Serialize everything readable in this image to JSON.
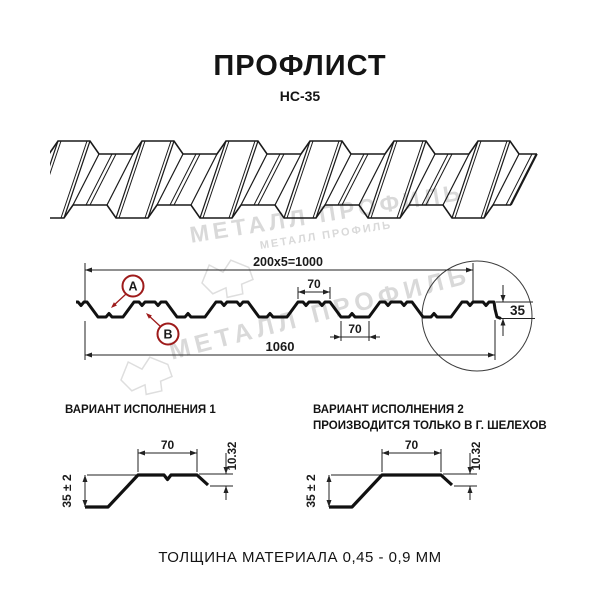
{
  "header": {
    "title": "ПРОФЛИСТ",
    "subtitle": "НС-35"
  },
  "section": {
    "dim_pitch_total": "200x5=1000",
    "dim_rib_top": "70",
    "dim_rib_bottom": "70",
    "dim_overall": "1060",
    "dim_height": "35",
    "label_a": "А",
    "label_b": "В"
  },
  "variants": {
    "v1_title": "ВАРИАНТ ИСПОЛНЕНИЯ 1",
    "v2_title_line1": "ВАРИАНТ ИСПОЛНЕНИЯ 2",
    "v2_title_line2": "ПРОИЗВОДИТСЯ ТОЛЬКО В Г. ШЕЛЕХОВ",
    "dim_rib": "70",
    "dim_height_tol": "35 ± 2",
    "dim_lip": "10.32"
  },
  "footer": {
    "material_thickness": "ТОЛЩИНА МАТЕРИАЛА 0,45 - 0,9 ММ"
  },
  "watermark": {
    "text": "МЕТАЛЛ ПРОФИЛЬ"
  },
  "colors": {
    "accent_red": "#9e1b1b",
    "line_dark": "#1a1a1a",
    "dim_line": "#222222",
    "watermark_gray": "#d9d9d9",
    "detail_circle": "#3c3c3c"
  }
}
